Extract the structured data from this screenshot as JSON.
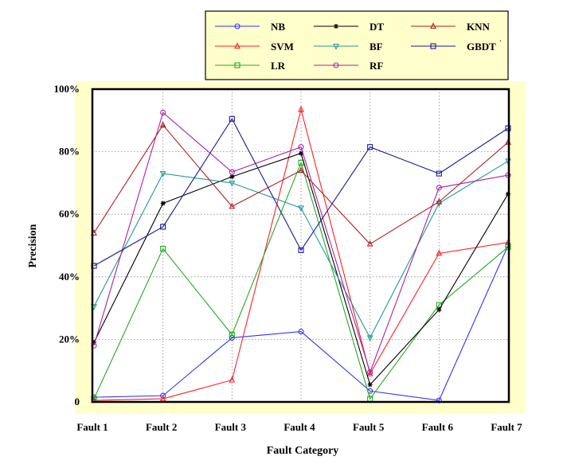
{
  "chart_data": {
    "type": "line",
    "title": "",
    "xlabel": "Fault Category",
    "ylabel": "Precision",
    "categories": [
      "Fault 1",
      "Fault 2",
      "Fault 3",
      "Fault 4",
      "Fault 5",
      "Fault 6",
      "Fault 7"
    ],
    "yticks": [
      {
        "value": 0,
        "label": "0"
      },
      {
        "value": 20,
        "label": "20%"
      },
      {
        "value": 40,
        "label": "40%"
      },
      {
        "value": 60,
        "label": "60%"
      },
      {
        "value": 80,
        "label": "80%"
      },
      {
        "value": 100,
        "label": "100%"
      }
    ],
    "ylim": [
      0,
      100
    ],
    "grid": true,
    "legend_position": "top",
    "plot_background": "#ffffff",
    "frame_background": "#ffffcc",
    "legend_background": "#ffffcc",
    "series": [
      {
        "name": "NB",
        "color": "#3333ff",
        "marker": "circle",
        "values": [
          1.5,
          2,
          20.5,
          22.5,
          3.5,
          0.5,
          50
        ]
      },
      {
        "name": "SVM",
        "color": "#ff2222",
        "marker": "triangle-up",
        "values": [
          0.5,
          1,
          7,
          93.5,
          9,
          47.5,
          51
        ]
      },
      {
        "name": "LR",
        "color": "#22aa22",
        "marker": "square",
        "values": [
          1,
          49,
          21.5,
          76.5,
          1,
          31,
          49.5
        ]
      },
      {
        "name": "DT",
        "color": "#000000",
        "marker": "asterisk",
        "values": [
          19,
          63.5,
          72,
          79.5,
          5.5,
          29.5,
          66.5
        ]
      },
      {
        "name": "BF",
        "color": "#229999",
        "marker": "triangle-down",
        "values": [
          30.5,
          73,
          70,
          62,
          20.5,
          63.5,
          77
        ]
      },
      {
        "name": "RF",
        "color": "#aa22aa",
        "marker": "circle",
        "values": [
          18,
          92.5,
          73.5,
          81.5,
          9.5,
          68.5,
          72.5
        ]
      },
      {
        "name": "KNN",
        "color": "#aa2222",
        "marker": "triangle-up",
        "values": [
          54,
          88.5,
          62.5,
          74,
          50.5,
          64,
          83
        ]
      },
      {
        "name": "GBDT",
        "color": "#1a1a99",
        "marker": "square",
        "values": [
          43.5,
          56,
          90.5,
          48.5,
          81.5,
          73,
          87.5
        ]
      }
    ]
  }
}
